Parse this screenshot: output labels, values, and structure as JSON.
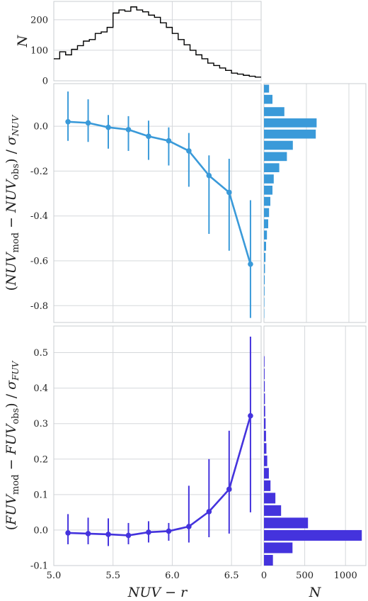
{
  "chart_data": [
    {
      "id": "top_hist",
      "type": "histogram-step",
      "ylabel": "N",
      "xlim": [
        5.0,
        6.75
      ],
      "ylim": [
        0,
        260
      ],
      "yticks": [
        0,
        100,
        200
      ],
      "bin_edges": [
        5.0,
        5.05,
        5.1,
        5.15,
        5.2,
        5.25,
        5.3,
        5.35,
        5.4,
        5.45,
        5.5,
        5.55,
        5.6,
        5.65,
        5.7,
        5.75,
        5.8,
        5.85,
        5.9,
        5.95,
        6.0,
        6.05,
        6.1,
        6.15,
        6.2,
        6.25,
        6.3,
        6.35,
        6.4,
        6.45,
        6.5,
        6.55,
        6.6,
        6.65,
        6.7,
        6.75
      ],
      "counts": [
        72,
        95,
        85,
        103,
        115,
        130,
        135,
        155,
        160,
        175,
        222,
        232,
        228,
        242,
        232,
        226,
        215,
        208,
        190,
        175,
        155,
        135,
        118,
        100,
        85,
        72,
        58,
        50,
        42,
        34,
        25,
        22,
        18,
        15,
        12
      ],
      "color": "#000000"
    },
    {
      "id": "nuv_main",
      "type": "line",
      "ylabel_parts": {
        "open": "(",
        "var1": "NUV",
        "sub1": "mod",
        "minus": " − ",
        "var2": "NUV",
        "sub2": "obs",
        "close": ") / ",
        "sigma": "σ",
        "sigma_sub": "NUV"
      },
      "xlim": [
        5.0,
        6.75
      ],
      "ylim": [
        -0.875,
        0.19
      ],
      "yticks": [
        "0.0",
        "-0.2",
        "-0.4",
        "-0.6",
        "-0.8"
      ],
      "ytick_values": [
        0.0,
        -0.2,
        -0.4,
        -0.6,
        -0.8
      ],
      "color": "#3a9ad9",
      "points": [
        {
          "x": 5.12,
          "y": 0.02,
          "lo": -0.065,
          "hi": 0.155
        },
        {
          "x": 5.29,
          "y": 0.015,
          "lo": -0.07,
          "hi": 0.12
        },
        {
          "x": 5.46,
          "y": -0.005,
          "lo": -0.1,
          "hi": 0.05
        },
        {
          "x": 5.63,
          "y": -0.015,
          "lo": -0.11,
          "hi": 0.045
        },
        {
          "x": 5.8,
          "y": -0.045,
          "lo": -0.15,
          "hi": 0.025
        },
        {
          "x": 5.97,
          "y": -0.065,
          "lo": -0.175,
          "hi": -0.005
        },
        {
          "x": 6.14,
          "y": -0.11,
          "lo": -0.27,
          "hi": -0.03
        },
        {
          "x": 6.31,
          "y": -0.22,
          "lo": -0.48,
          "hi": -0.13
        },
        {
          "x": 6.48,
          "y": -0.295,
          "lo": -0.555,
          "hi": -0.145
        },
        {
          "x": 6.66,
          "y": -0.615,
          "lo": -0.855,
          "hi": -0.33
        }
      ]
    },
    {
      "id": "nuv_hist",
      "type": "histogram-horizontal",
      "xlim": [
        0,
        1200
      ],
      "color": "#3a9ad9",
      "bins": [
        {
          "y0": 0.15,
          "y1": 0.185,
          "n": 60
        },
        {
          "y0": 0.1,
          "y1": 0.14,
          "n": 100
        },
        {
          "y0": 0.045,
          "y1": 0.085,
          "n": 240
        },
        {
          "y0": -0.005,
          "y1": 0.035,
          "n": 620
        },
        {
          "y0": -0.055,
          "y1": -0.015,
          "n": 610
        },
        {
          "y0": -0.105,
          "y1": -0.065,
          "n": 340
        },
        {
          "y0": -0.155,
          "y1": -0.115,
          "n": 270
        },
        {
          "y0": -0.205,
          "y1": -0.165,
          "n": 180
        },
        {
          "y0": -0.255,
          "y1": -0.215,
          "n": 115
        },
        {
          "y0": -0.305,
          "y1": -0.265,
          "n": 100
        },
        {
          "y0": -0.355,
          "y1": -0.315,
          "n": 75
        },
        {
          "y0": -0.405,
          "y1": -0.365,
          "n": 60
        },
        {
          "y0": -0.455,
          "y1": -0.415,
          "n": 50
        },
        {
          "y0": -0.505,
          "y1": -0.465,
          "n": 35
        },
        {
          "y0": -0.555,
          "y1": -0.515,
          "n": 25
        },
        {
          "y0": -0.605,
          "y1": -0.565,
          "n": 18
        },
        {
          "y0": -0.655,
          "y1": -0.615,
          "n": 12
        },
        {
          "y0": -0.705,
          "y1": -0.665,
          "n": 9
        },
        {
          "y0": -0.755,
          "y1": -0.715,
          "n": 7
        },
        {
          "y0": -0.805,
          "y1": -0.765,
          "n": 5
        },
        {
          "y0": -0.855,
          "y1": -0.815,
          "n": 4
        }
      ]
    },
    {
      "id": "fuv_main",
      "type": "line",
      "ylabel_parts": {
        "open": "(",
        "var1": "FUV",
        "sub1": "mod",
        "minus": " − ",
        "var2": "FUV",
        "sub2": "obs",
        "close": ") / ",
        "sigma": "σ",
        "sigma_sub": "FUV"
      },
      "xlabel_parts": {
        "var1": "NUV",
        "minus": " − ",
        "var2": "r"
      },
      "xlim": [
        5.0,
        6.75
      ],
      "xticks": [
        "5.0",
        "5.5",
        "6.0",
        "6.5"
      ],
      "xtick_values": [
        5.0,
        5.5,
        6.0,
        6.5
      ],
      "ylim": [
        -0.1,
        0.575
      ],
      "yticks": [
        "-0.1",
        "0.0",
        "0.1",
        "0.2",
        "0.3",
        "0.4",
        "0.5"
      ],
      "ytick_values": [
        -0.1,
        0.0,
        0.1,
        0.2,
        0.3,
        0.4,
        0.5
      ],
      "color": "#4433dd",
      "points": [
        {
          "x": 5.12,
          "y": -0.008,
          "lo": -0.04,
          "hi": 0.045
        },
        {
          "x": 5.29,
          "y": -0.01,
          "lo": -0.04,
          "hi": 0.035
        },
        {
          "x": 5.46,
          "y": -0.012,
          "lo": -0.045,
          "hi": 0.033
        },
        {
          "x": 5.63,
          "y": -0.015,
          "lo": -0.04,
          "hi": 0.02
        },
        {
          "x": 5.8,
          "y": -0.006,
          "lo": -0.035,
          "hi": 0.025
        },
        {
          "x": 5.97,
          "y": -0.003,
          "lo": -0.03,
          "hi": 0.02
        },
        {
          "x": 6.14,
          "y": 0.01,
          "lo": -0.035,
          "hi": 0.125
        },
        {
          "x": 6.31,
          "y": 0.052,
          "lo": -0.02,
          "hi": 0.2
        },
        {
          "x": 6.48,
          "y": 0.115,
          "lo": -0.01,
          "hi": 0.28
        },
        {
          "x": 6.66,
          "y": 0.322,
          "lo": 0.05,
          "hi": 0.545
        }
      ]
    },
    {
      "id": "fuv_hist",
      "type": "histogram-horizontal",
      "xlabel": "N",
      "xlim": [
        0,
        1250
      ],
      "xticks": [
        "0",
        "500",
        "1000"
      ],
      "xtick_values": [
        0,
        500,
        1000
      ],
      "color": "#4433dd",
      "bins": [
        {
          "y0": -0.1,
          "y1": -0.07,
          "n": 110
        },
        {
          "y0": -0.065,
          "y1": -0.035,
          "n": 350
        },
        {
          "y0": -0.03,
          "y1": 0.0,
          "n": 1200
        },
        {
          "y0": 0.005,
          "y1": 0.035,
          "n": 540
        },
        {
          "y0": 0.04,
          "y1": 0.07,
          "n": 210
        },
        {
          "y0": 0.075,
          "y1": 0.105,
          "n": 140
        },
        {
          "y0": 0.11,
          "y1": 0.14,
          "n": 80
        },
        {
          "y0": 0.145,
          "y1": 0.175,
          "n": 60
        },
        {
          "y0": 0.18,
          "y1": 0.21,
          "n": 40
        },
        {
          "y0": 0.215,
          "y1": 0.245,
          "n": 30
        },
        {
          "y0": 0.25,
          "y1": 0.28,
          "n": 25
        },
        {
          "y0": 0.285,
          "y1": 0.315,
          "n": 20
        },
        {
          "y0": 0.32,
          "y1": 0.35,
          "n": 15
        },
        {
          "y0": 0.355,
          "y1": 0.385,
          "n": 12
        },
        {
          "y0": 0.39,
          "y1": 0.42,
          "n": 10
        },
        {
          "y0": 0.425,
          "y1": 0.455,
          "n": 8
        },
        {
          "y0": 0.46,
          "y1": 0.49,
          "n": 7
        }
      ]
    }
  ]
}
